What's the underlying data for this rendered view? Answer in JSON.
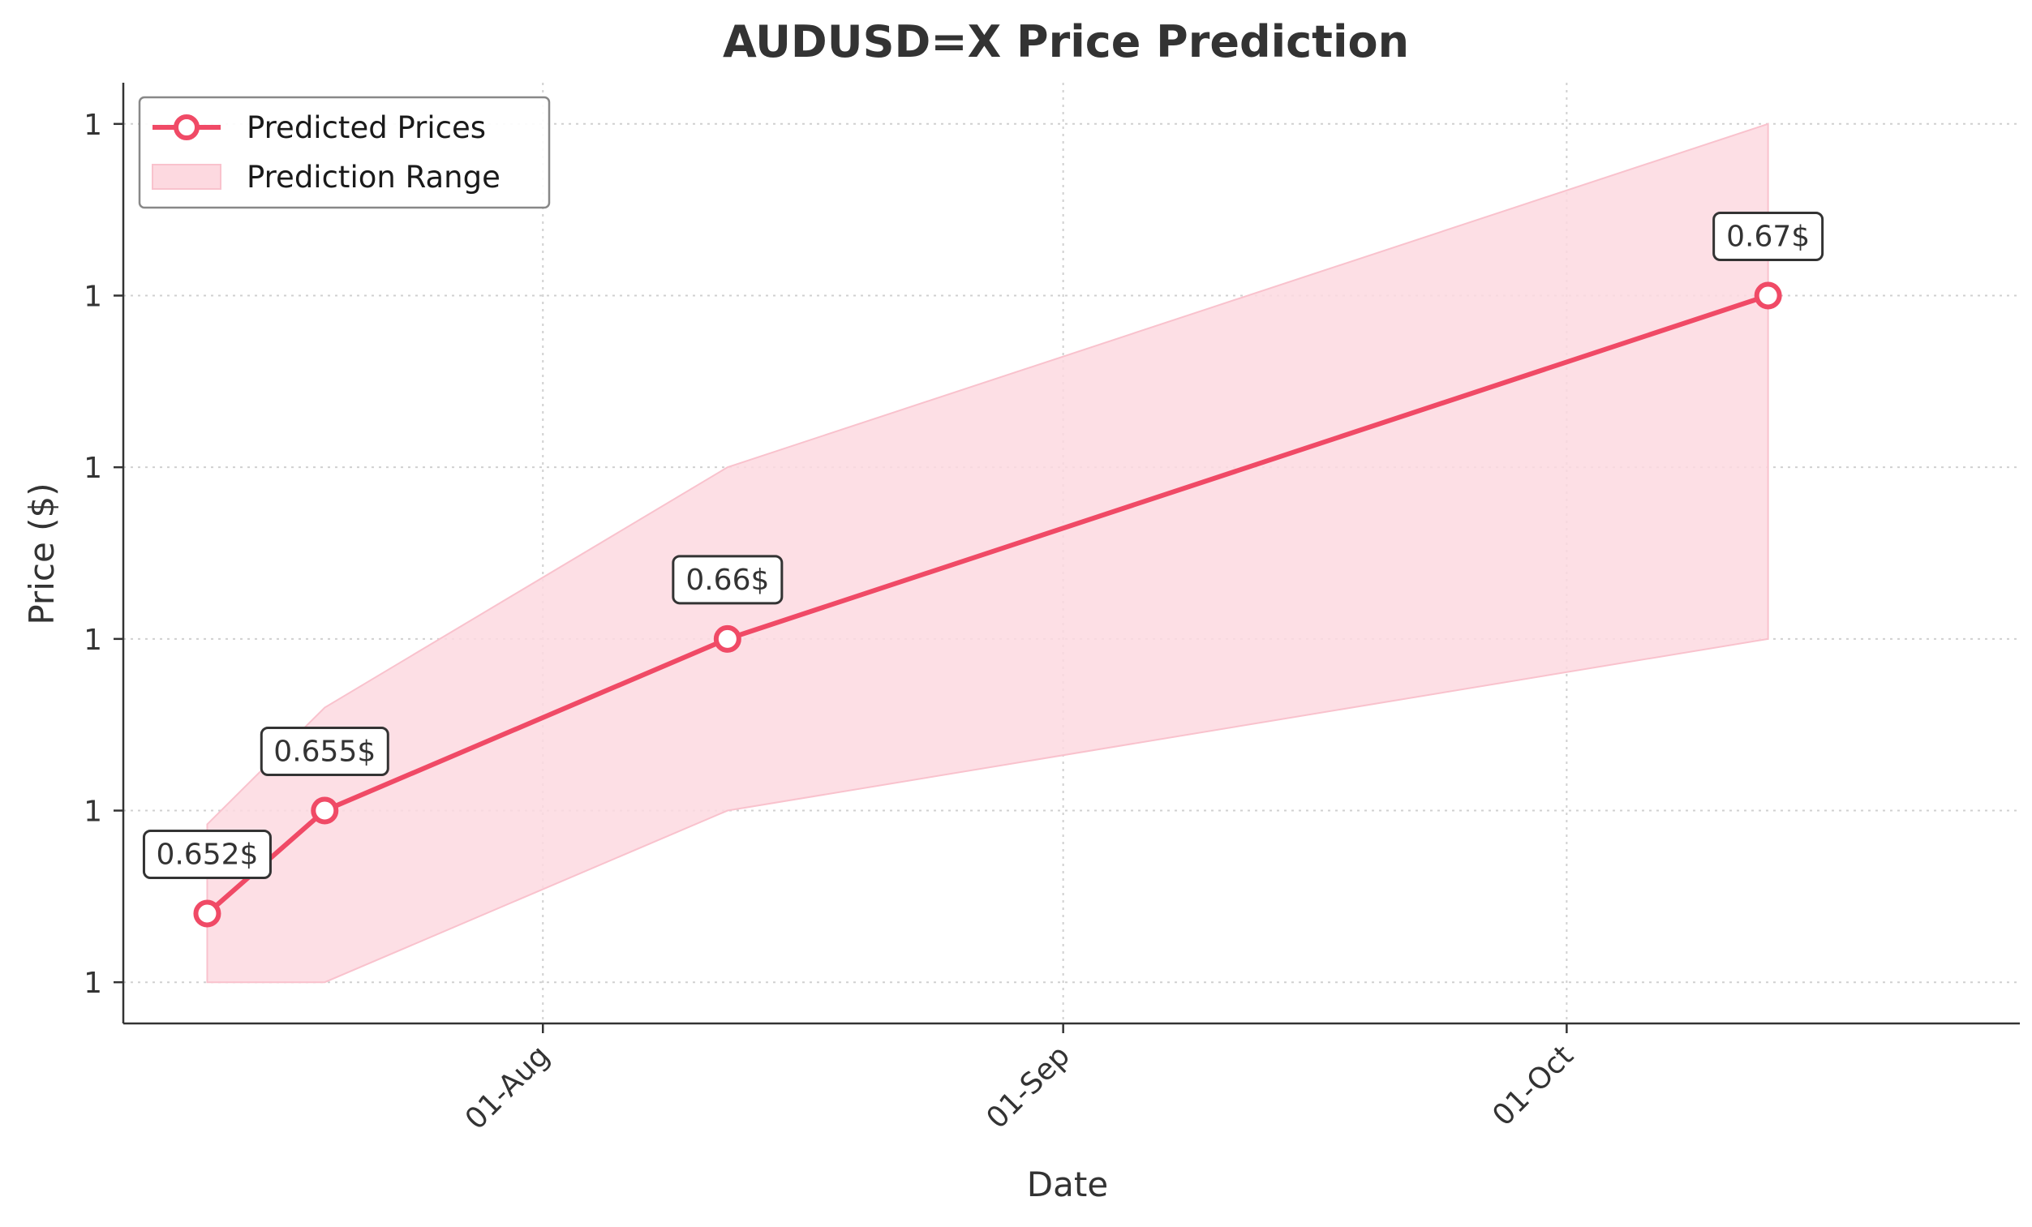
{
  "chart_data": {
    "type": "line",
    "title": "AUDUSD=X Price Prediction",
    "xlabel": "Date",
    "ylabel": "Price ($)",
    "x_tick_labels": [
      "01-Aug",
      "01-Sep",
      "01-Oct"
    ],
    "x_tick_dates": [
      "2024-08-01",
      "2024-09-01",
      "2024-10-01"
    ],
    "y_tick_labels": [
      "1",
      "1",
      "1",
      "1",
      "1",
      "1"
    ],
    "y_tick_values": [
      0.65,
      0.655,
      0.66,
      0.665,
      0.67,
      0.675
    ],
    "ylim": [
      0.6488,
      0.6762
    ],
    "xlim": [
      "2024-07-07",
      "2024-10-28"
    ],
    "grid": true,
    "legend_position": "top-left",
    "series": [
      {
        "name": "Predicted Prices",
        "color": "#f04a66",
        "x": [
          "2024-07-12",
          "2024-07-19",
          "2024-08-12",
          "2024-10-13"
        ],
        "y": [
          0.652,
          0.655,
          0.66,
          0.67
        ],
        "labels": [
          "0.652$",
          "0.655$",
          "0.66$",
          "0.67$"
        ]
      }
    ],
    "range": {
      "name": "Prediction Range",
      "color": "#f9b3c1",
      "x": [
        "2024-07-12",
        "2024-07-19",
        "2024-08-12",
        "2024-10-13"
      ],
      "lower": [
        0.65,
        0.65,
        0.655,
        0.66
      ],
      "upper": [
        0.6546,
        0.658,
        0.665,
        0.675
      ]
    }
  }
}
